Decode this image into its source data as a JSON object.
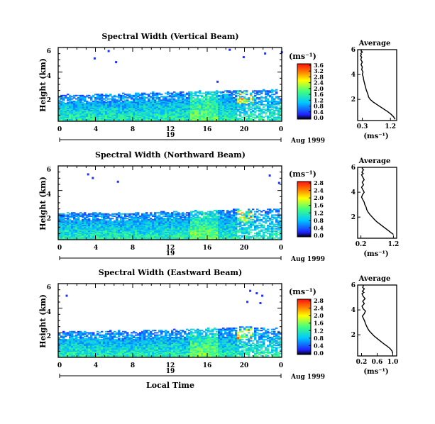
{
  "chart_data": [
    {
      "type": "heatmap",
      "title": "Spectral Width (Vertical Beam)",
      "ylabel": "Height (km)",
      "xlim": [
        0,
        24
      ],
      "ylim": [
        0,
        6
      ],
      "xticks": [
        "0",
        "4",
        "8",
        "12",
        "16",
        "20",
        "0"
      ],
      "yticks": [
        "2",
        "4",
        "6"
      ],
      "date_day": "19",
      "date_label": "Aug 1999",
      "colorbar": {
        "unit": "(ms⁻¹)",
        "ticks": [
          "0.0",
          "0.4",
          "0.8",
          "1.2",
          "1.6",
          "2.0",
          "2.4",
          "2.8",
          "3.2",
          "3.6"
        ]
      },
      "top_km": [
        2.1,
        2.1,
        2.1,
        2.1,
        2.15,
        2.15,
        2.2,
        2.2,
        2.25,
        2.25,
        2.3,
        2.3,
        2.35,
        2.35,
        2.4,
        2.4,
        2.45,
        2.45,
        2.5,
        2.5,
        2.5,
        2.5,
        2.5,
        2.5
      ],
      "scatter": [
        [
          5.3,
          5.8
        ],
        [
          17,
          3.3
        ],
        [
          18.3,
          5.9
        ],
        [
          23.9,
          5.7
        ],
        [
          3.8,
          5.2
        ],
        [
          6.1,
          4.9
        ],
        [
          19.8,
          5.3
        ],
        [
          22.1,
          5.6
        ]
      ]
    },
    {
      "type": "heatmap",
      "title": "Spectral Width (Northward Beam)",
      "ylabel": "Height (km)",
      "xlim": [
        0,
        24
      ],
      "ylim": [
        0,
        6
      ],
      "xticks": [
        "0",
        "4",
        "8",
        "12",
        "16",
        "20",
        "0"
      ],
      "yticks": [
        "2",
        "4",
        "6"
      ],
      "date_day": "19",
      "date_label": "Aug 1999",
      "colorbar": {
        "unit": "(ms⁻¹)",
        "ticks": [
          "0.0",
          "0.4",
          "0.8",
          "1.2",
          "1.6",
          "2.0",
          "2.4",
          "2.8"
        ]
      },
      "top_km": [
        2.15,
        2.15,
        2.15,
        2.15,
        2.1,
        2.1,
        2.1,
        2.15,
        2.15,
        2.2,
        2.2,
        2.2,
        2.25,
        2.25,
        2.3,
        2.3,
        2.35,
        2.35,
        2.4,
        2.4,
        2.45,
        2.45,
        2.45,
        2.45
      ],
      "scatter": [
        [
          3.1,
          5.4
        ],
        [
          6.3,
          4.8
        ],
        [
          23.6,
          4.7
        ],
        [
          22.6,
          5.3
        ],
        [
          3.6,
          5.1
        ]
      ]
    },
    {
      "type": "heatmap",
      "title": "Spectral Width (Eastward Beam)",
      "ylabel": "Height (km)",
      "xlabel": "Local Time",
      "xlim": [
        0,
        24
      ],
      "ylim": [
        0,
        6
      ],
      "xticks": [
        "0",
        "4",
        "8",
        "12",
        "16",
        "20",
        "0"
      ],
      "yticks": [
        "2",
        "4",
        "6"
      ],
      "date_day": "19",
      "date_label": "Aug 1999",
      "colorbar": {
        "unit": "(ms⁻¹)",
        "ticks": [
          "0.0",
          "0.4",
          "0.8",
          "1.2",
          "1.6",
          "2.0",
          "2.4",
          "2.8"
        ]
      },
      "top_km": [
        2.05,
        2.05,
        2.05,
        2.05,
        2.1,
        2.1,
        2.1,
        2.1,
        2.1,
        2.15,
        2.15,
        2.15,
        2.2,
        2.2,
        2.25,
        2.25,
        2.3,
        2.3,
        2.4,
        2.4,
        2.4,
        2.4,
        2.35,
        2.35
      ],
      "scatter": [
        [
          0.8,
          5.1
        ],
        [
          20.5,
          5.5
        ],
        [
          21.2,
          5.3
        ],
        [
          21.8,
          5.1
        ],
        [
          20.2,
          4.6
        ],
        [
          21.6,
          4.5
        ]
      ]
    },
    {
      "type": "line",
      "title": "Average",
      "xlabel": "(ms⁻¹)",
      "xlim": [
        0.15,
        1.4
      ],
      "ylim": [
        0.3,
        6
      ],
      "xticks": [
        {
          "v": 0.3,
          "t": "0.3"
        },
        {
          "v": 1.2,
          "t": "1.2"
        }
      ],
      "yticks": [
        {
          "v": 2,
          "t": "2"
        },
        {
          "v": 4,
          "t": "4"
        },
        {
          "v": 6,
          "t": "6"
        }
      ],
      "x": [
        1.35,
        1.3,
        1.22,
        1.12,
        1.0,
        0.88,
        0.76,
        0.64,
        0.55,
        0.5,
        0.48,
        0.45,
        0.42,
        0.4,
        0.38,
        0.36,
        0.34,
        0.33,
        0.3,
        0.32,
        0.28,
        0.3,
        0.26,
        0.3,
        0.25,
        0.28,
        0.24,
        0.27,
        0.25,
        0.3,
        0.26,
        0.28
      ],
      "y": [
        0.4,
        0.6,
        0.8,
        1.0,
        1.2,
        1.4,
        1.6,
        1.8,
        2.0,
        2.2,
        2.4,
        2.6,
        2.8,
        3.0,
        3.2,
        3.4,
        3.6,
        3.8,
        4.0,
        4.2,
        4.4,
        4.6,
        4.8,
        5.0,
        5.2,
        5.4,
        5.5,
        5.6,
        5.7,
        5.8,
        5.9,
        6.0
      ]
    },
    {
      "type": "line",
      "title": "Average",
      "xlabel": "(ms⁻¹)",
      "xlim": [
        0.1,
        1.3
      ],
      "ylim": [
        0.3,
        6
      ],
      "xticks": [
        {
          "v": 0.2,
          "t": "0.2"
        },
        {
          "v": 1.2,
          "t": "1.2"
        }
      ],
      "yticks": [
        {
          "v": 2,
          "t": "2"
        },
        {
          "v": 4,
          "t": "4"
        },
        {
          "v": 6,
          "t": "6"
        }
      ],
      "x": [
        1.2,
        1.1,
        1.0,
        0.9,
        0.8,
        0.7,
        0.62,
        0.55,
        0.48,
        0.42,
        0.38,
        0.36,
        0.32,
        0.3,
        0.26,
        0.22,
        0.25,
        0.3,
        0.26,
        0.22,
        0.28,
        0.24,
        0.3,
        0.26,
        0.22,
        0.27,
        0.23,
        0.25,
        0.28,
        0.24,
        0.26
      ],
      "y": [
        0.6,
        0.8,
        1.0,
        1.2,
        1.4,
        1.6,
        1.8,
        2.0,
        2.2,
        2.4,
        2.6,
        2.8,
        3.0,
        3.2,
        3.4,
        3.6,
        3.8,
        4.0,
        4.2,
        4.4,
        4.6,
        4.8,
        5.0,
        5.2,
        5.4,
        5.5,
        5.6,
        5.7,
        5.8,
        5.9,
        6.0
      ]
    },
    {
      "type": "line",
      "title": "Average",
      "xlabel": "(ms⁻¹)",
      "xlim": [
        0.1,
        1.1
      ],
      "ylim": [
        0.3,
        6
      ],
      "xticks": [
        {
          "v": 0.2,
          "t": "0.2"
        },
        {
          "v": 0.6,
          "t": "0.6"
        },
        {
          "v": 1.0,
          "t": "1.0"
        }
      ],
      "yticks": [
        {
          "v": 2,
          "t": "2"
        },
        {
          "v": 4,
          "t": "4"
        },
        {
          "v": 6,
          "t": "6"
        }
      ],
      "x": [
        1.0,
        0.98,
        0.93,
        0.85,
        0.76,
        0.68,
        0.6,
        0.52,
        0.46,
        0.4,
        0.36,
        0.33,
        0.3,
        0.28,
        0.25,
        0.22,
        0.27,
        0.3,
        0.24,
        0.21,
        0.27,
        0.23,
        0.29,
        0.24,
        0.21,
        0.26,
        0.22,
        0.25,
        0.27,
        0.23,
        0.25
      ],
      "y": [
        0.5,
        0.7,
        0.9,
        1.1,
        1.3,
        1.5,
        1.7,
        1.9,
        2.1,
        2.3,
        2.5,
        2.7,
        2.9,
        3.1,
        3.3,
        3.5,
        3.7,
        3.9,
        4.1,
        4.3,
        4.5,
        4.7,
        4.9,
        5.1,
        5.3,
        5.4,
        5.5,
        5.6,
        5.7,
        5.8,
        6.0
      ]
    }
  ]
}
